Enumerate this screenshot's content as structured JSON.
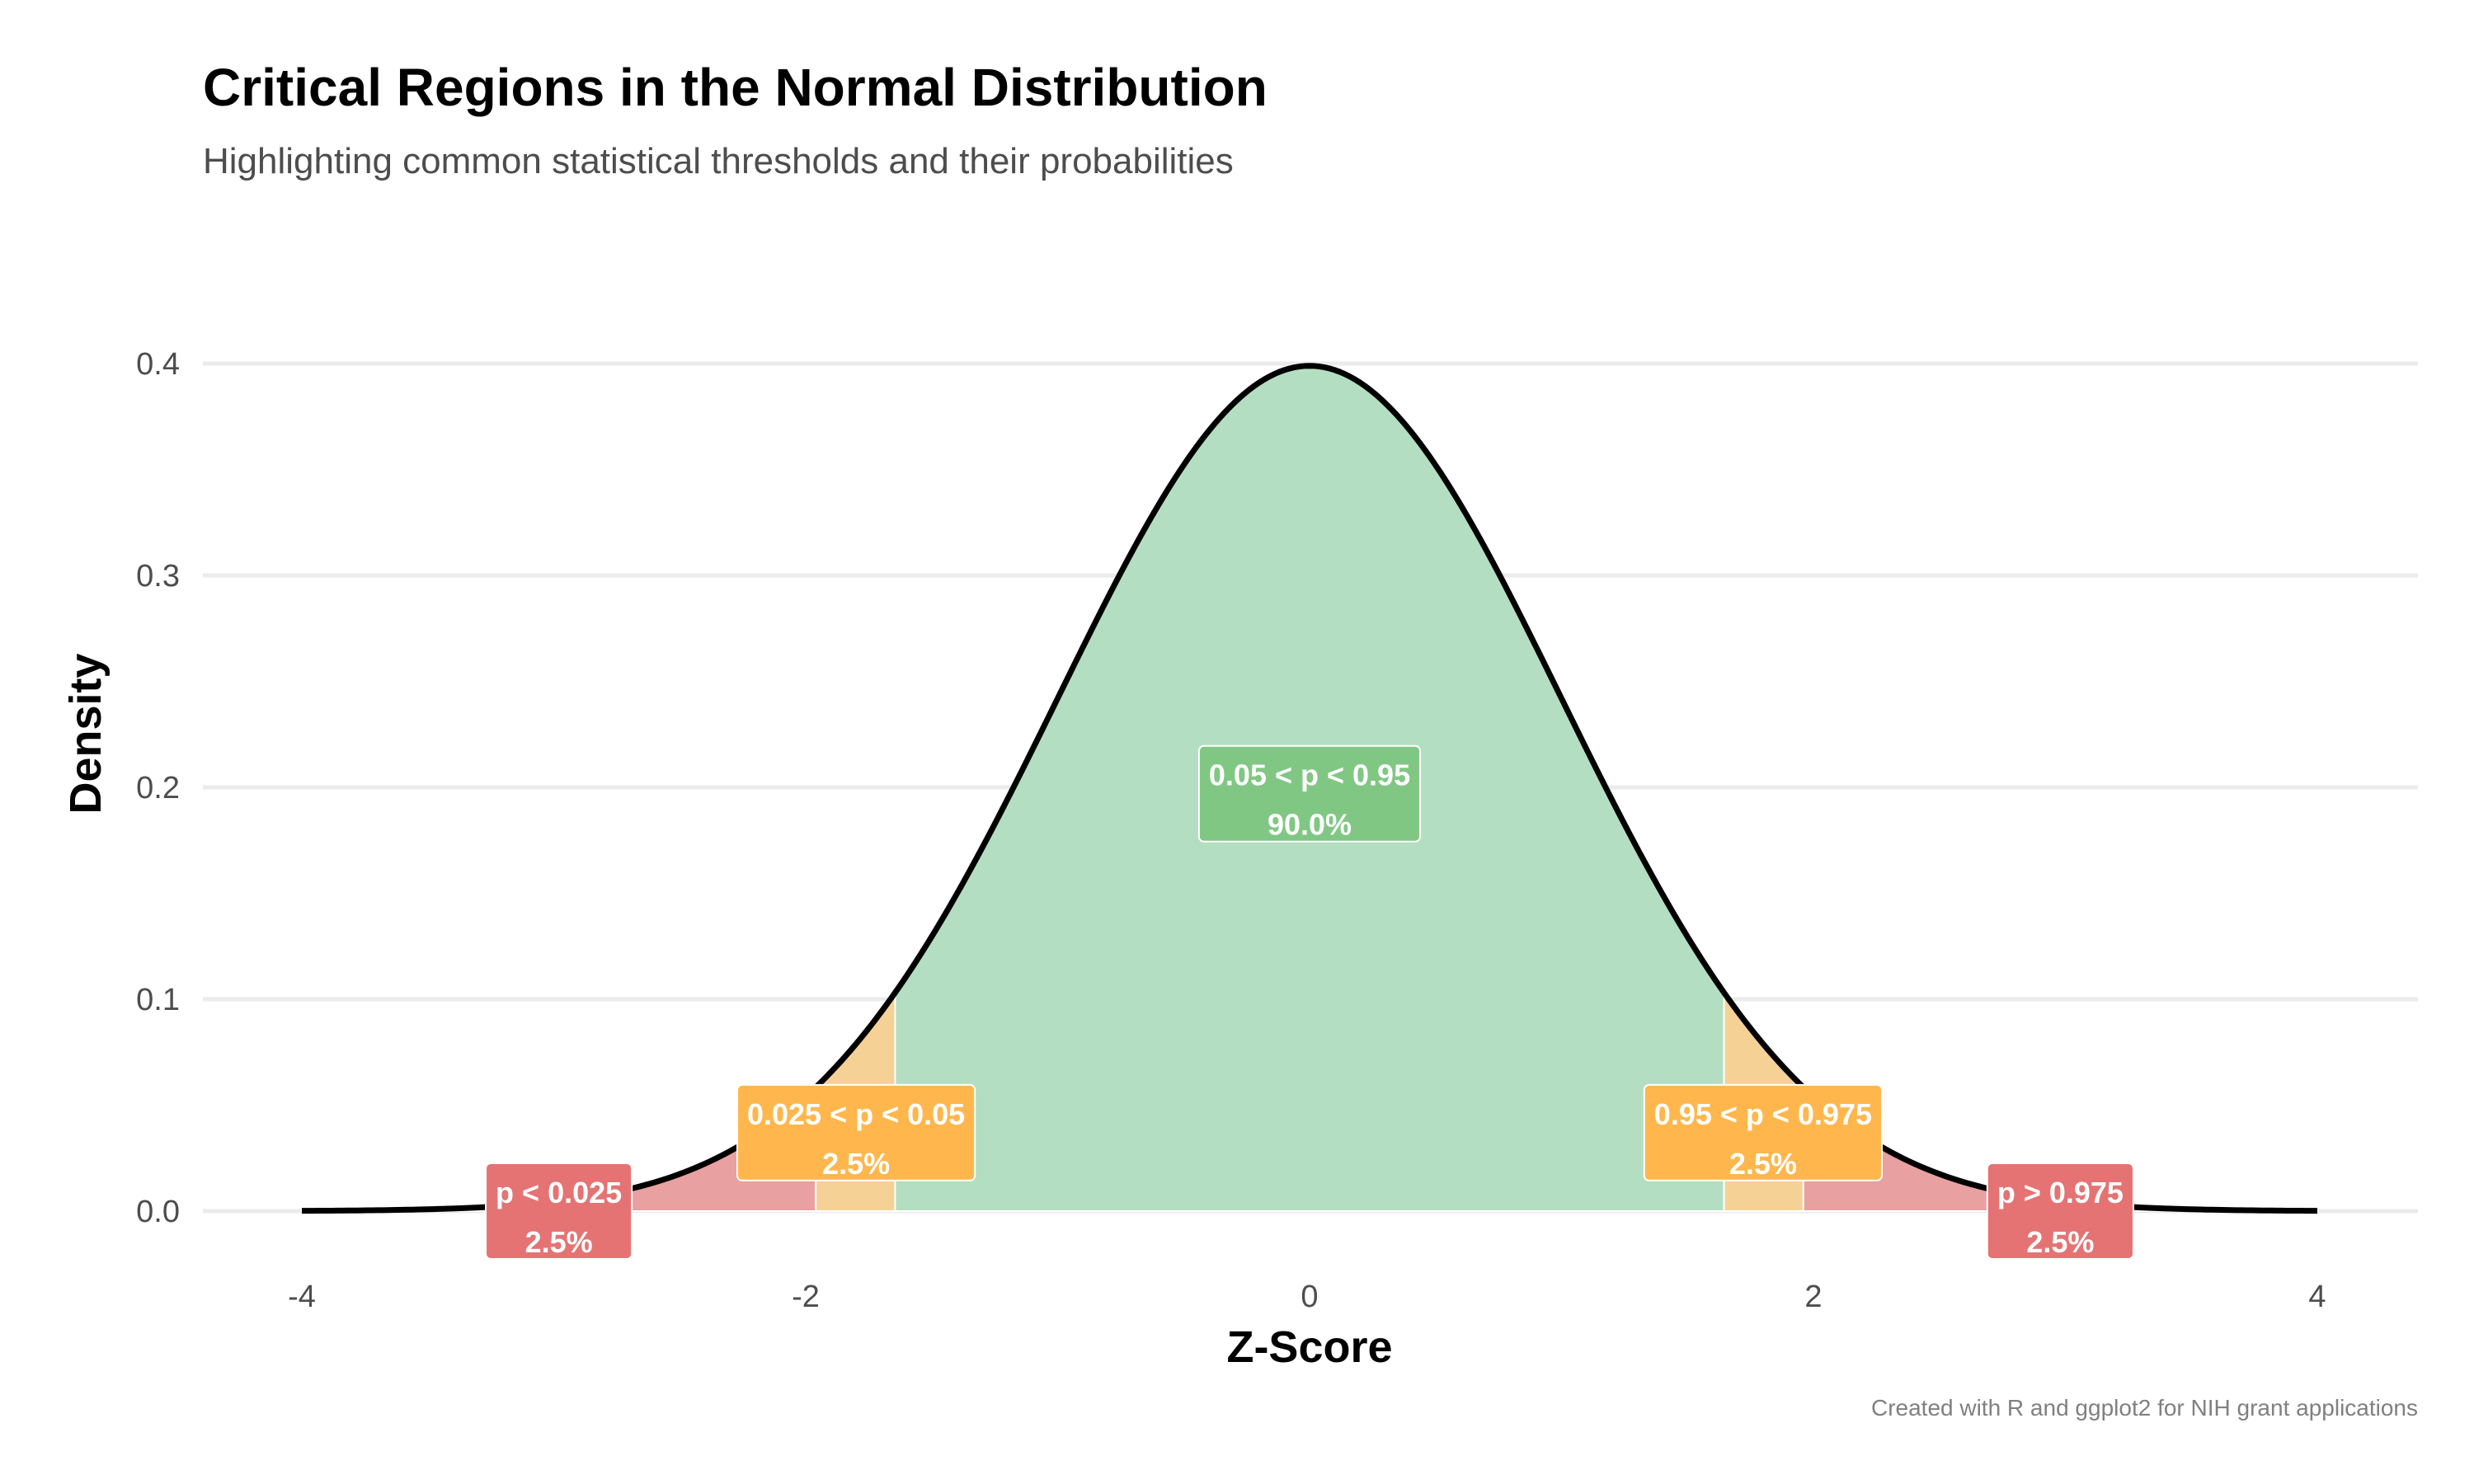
{
  "chart_data": {
    "type": "area",
    "title": "Critical Regions in the Normal Distribution",
    "subtitle": "Highlighting common statistical thresholds and their probabilities",
    "xlabel": "Z-Score",
    "ylabel": "Density",
    "caption": "Created with R and ggplot2 for NIH grant applications",
    "xlim": [
      -4,
      4
    ],
    "ylim": [
      0,
      0.4
    ],
    "x_ticks": [
      -4,
      -2,
      0,
      2,
      4
    ],
    "x_tick_labels": [
      "-4",
      "-2",
      "0",
      "2",
      "4"
    ],
    "y_ticks": [
      0,
      0.1,
      0.2,
      0.3,
      0.4
    ],
    "y_tick_labels": [
      "0.0",
      "0.1",
      "0.2",
      "0.3",
      "0.4"
    ],
    "grid": "horizontal major",
    "legend": "none",
    "curve": {
      "distribution": "standard normal",
      "mean": 0,
      "sd": 1,
      "x_range": [
        -4,
        4
      ],
      "color": "#000000"
    },
    "regions": [
      {
        "x_range": [
          -4,
          -1.96
        ],
        "probability_label": "p < 0.025",
        "percent": "2.5%",
        "fill_color": "#E8A0A0",
        "label_color": "#E57373",
        "label_x": -2.98,
        "label_y": 0.0
      },
      {
        "x_range": [
          -1.96,
          -1.645
        ],
        "probability_label": "0.025 < p < 0.05",
        "percent": "2.5%",
        "fill_color": "#F5D196",
        "label_color": "#FFB74D",
        "label_x": -1.8,
        "label_y": 0.037
      },
      {
        "x_range": [
          -1.645,
          1.645
        ],
        "probability_label": "0.05 < p < 0.95",
        "percent": "90.0%",
        "fill_color": "#B4DEC1",
        "label_color": "#81C784",
        "label_x": 0,
        "label_y": 0.197
      },
      {
        "x_range": [
          1.645,
          1.96
        ],
        "probability_label": "0.95 < p < 0.975",
        "percent": "2.5%",
        "fill_color": "#F5D196",
        "label_color": "#FFB74D",
        "label_x": 1.8,
        "label_y": 0.037
      },
      {
        "x_range": [
          1.96,
          4
        ],
        "probability_label": "p > 0.975",
        "percent": "2.5%",
        "fill_color": "#E8A0A0",
        "label_color": "#E57373",
        "label_x": 2.98,
        "label_y": 0.0
      }
    ]
  }
}
